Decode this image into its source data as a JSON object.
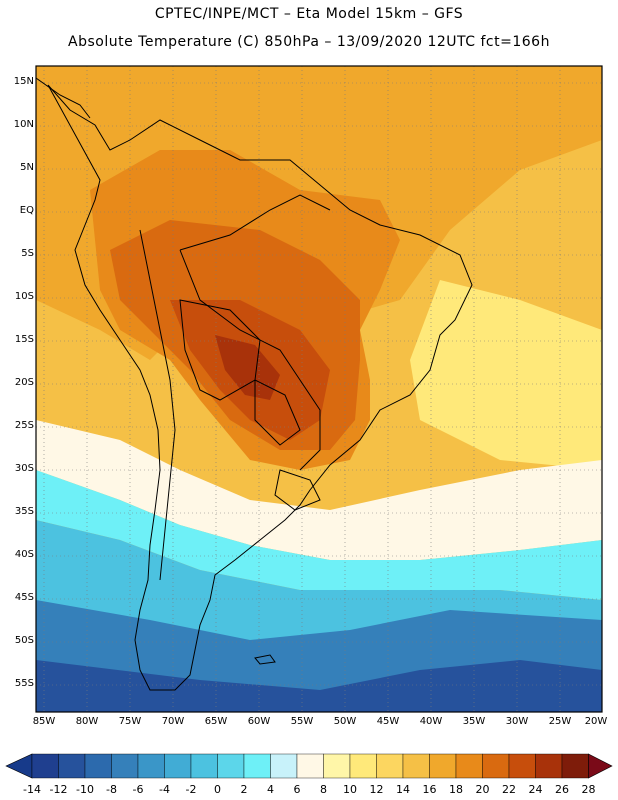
{
  "header": {
    "line1": "CPTEC/INPE/MCT –  Eta Model 15km – GFS",
    "line2": "Absolute Temperature (C) 850hPa – 13/09/2020 12UTC fct=166h"
  },
  "axes": {
    "lat_labels": [
      "15N",
      "10N",
      "5N",
      "EQ",
      "5S",
      "10S",
      "15S",
      "20S",
      "25S",
      "30S",
      "35S",
      "40S",
      "45S",
      "50S",
      "55S"
    ],
    "lon_labels": [
      "85W",
      "80W",
      "75W",
      "70W",
      "65W",
      "60W",
      "55W",
      "50W",
      "45W",
      "40W",
      "35W",
      "30W",
      "25W",
      "20W"
    ]
  },
  "colorbar": {
    "labels": [
      "-14",
      "-12",
      "-10",
      "-8",
      "-6",
      "-4",
      "-2",
      "0",
      "2",
      "4",
      "6",
      "8",
      "10",
      "12",
      "14",
      "16",
      "18",
      "20",
      "22",
      "24",
      "26",
      "28"
    ],
    "colors": [
      "#1f3f8f",
      "#26529c",
      "#2c6aad",
      "#3580ba",
      "#3a96c8",
      "#41acd5",
      "#4cc2e0",
      "#5cd6ea",
      "#6ef0f7",
      "#c8f2fa",
      "#fff8e6",
      "#fff6a8",
      "#ffe97a",
      "#fcd660",
      "#f5c046",
      "#f0a82c",
      "#e88a1a",
      "#d96a10",
      "#c74e0c",
      "#a8320a",
      "#7e1c0a"
    ],
    "low_end_color": "#173a8a",
    "high_end_color": "#7a0a18"
  },
  "map_colors": {
    "ocean_south_deep": "#26529c",
    "ocean_south": "#3580ba",
    "ocean_cool": "#4cc2e0",
    "ocean_mild": "#6ef0f7",
    "transition": "#fff8e6",
    "warm_light": "#ffe97a",
    "warm": "#f5c046",
    "warmer": "#f0a82c",
    "hot": "#e88a1a",
    "hotter": "#d96a10",
    "hottest": "#c74e0c",
    "core": "#a8320a",
    "outline": "#000000"
  }
}
